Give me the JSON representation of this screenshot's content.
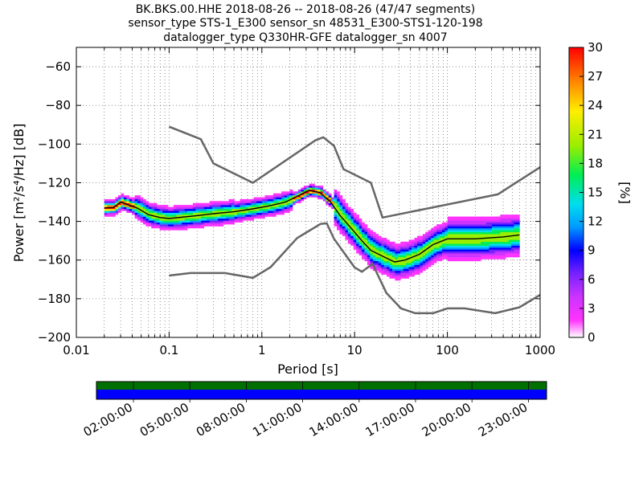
{
  "header": {
    "title_line1": "BK.BKS.00.HHE   2018-08-26 -- 2018-08-26  (47/47 segments)",
    "title_line2": "sensor_type STS-1_E300 sensor_sn 48531_E300-STS1-120-198",
    "title_line3": "datalogger_type Q330HR-GFE datalogger_sn 4007"
  },
  "colorbar": {
    "label": "[%]",
    "ticks": [
      "30",
      "27",
      "24",
      "21",
      "18",
      "15",
      "12",
      "9",
      "6",
      "3",
      "0"
    ],
    "range": [
      0,
      30
    ]
  },
  "timeline": {
    "ticks": [
      "02:00:00",
      "05:00:00",
      "08:00:00",
      "11:00:00",
      "14:00:00",
      "17:00:00",
      "20:00:00",
      "23:00:00"
    ],
    "top_color": "#007000",
    "bottom_color": "#0000ff"
  },
  "colors": {
    "noise_model": "#666666",
    "mean_curve": "#000000",
    "colormap": [
      "#ffffff",
      "#ff33ff",
      "#cc33ff",
      "#7722ff",
      "#0000ff",
      "#0099ff",
      "#00ddee",
      "#00ee55",
      "#99ee00",
      "#ffee00",
      "#ff8800",
      "#ff0000"
    ]
  },
  "chart_data": {
    "type": "heatmap",
    "title": "BK.BKS.00.HHE   2018-08-26 -- 2018-08-26  (47/47 segments)",
    "xlabel": "Period [s]",
    "ylabel": "Power [m²/s⁴/Hz] [dB]",
    "xscale": "log",
    "xlim": [
      0.01,
      1000
    ],
    "ylim": [
      -200,
      -50
    ],
    "xticks": [
      "0.01",
      "0.1",
      "1",
      "10",
      "100",
      "1000"
    ],
    "yticks": [
      "−60",
      "−80",
      "−100",
      "−120",
      "−140",
      "−160",
      "−180",
      "−200"
    ],
    "grid": true,
    "series": [
      {
        "name": "NHNM",
        "values": [
          [
            0.1,
            -91
          ],
          [
            0.22,
            -97.5
          ],
          [
            0.3,
            -110
          ],
          [
            0.8,
            -120
          ],
          [
            3.8,
            -98
          ],
          [
            4.6,
            -96.5
          ],
          [
            6,
            -101
          ],
          [
            7.6,
            -113
          ],
          [
            15,
            -120
          ],
          [
            20,
            -138
          ],
          [
            350,
            -126
          ],
          [
            1000,
            -112
          ]
        ]
      },
      {
        "name": "NLNM",
        "values": [
          [
            0.1,
            -168
          ],
          [
            0.17,
            -166.7
          ],
          [
            0.4,
            -166.7
          ],
          [
            0.8,
            -169.2
          ],
          [
            1.24,
            -163.7
          ],
          [
            2.4,
            -148.6
          ],
          [
            4.3,
            -141.3
          ],
          [
            5,
            -141
          ],
          [
            6,
            -149
          ],
          [
            10,
            -163.8
          ],
          [
            12,
            -166
          ],
          [
            15.6,
            -162
          ],
          [
            22,
            -177
          ],
          [
            31.6,
            -185
          ],
          [
            45,
            -187.5
          ],
          [
            70,
            -187.5
          ],
          [
            100,
            -185
          ],
          [
            154,
            -185
          ],
          [
            328,
            -187.5
          ],
          [
            600,
            -184.4
          ],
          [
            1000,
            -178
          ]
        ]
      },
      {
        "name": "mean",
        "values": [
          [
            0.02,
            -133
          ],
          [
            0.025,
            -132.8
          ],
          [
            0.03,
            -130
          ],
          [
            0.045,
            -133
          ],
          [
            0.06,
            -136.5
          ],
          [
            0.08,
            -138
          ],
          [
            0.1,
            -138.5
          ],
          [
            0.2,
            -137
          ],
          [
            0.3,
            -136
          ],
          [
            0.5,
            -135
          ],
          [
            0.8,
            -133.5
          ],
          [
            1.2,
            -132
          ],
          [
            1.8,
            -130
          ],
          [
            2.3,
            -127.5
          ],
          [
            3.2,
            -124
          ],
          [
            4.2,
            -125
          ],
          [
            5.5,
            -130
          ],
          [
            7,
            -137
          ],
          [
            9,
            -143
          ],
          [
            12,
            -150
          ],
          [
            15,
            -155
          ],
          [
            20,
            -158
          ],
          [
            27,
            -161
          ],
          [
            35,
            -160
          ],
          [
            50,
            -157
          ],
          [
            70,
            -152
          ],
          [
            100,
            -149
          ],
          [
            200,
            -149
          ],
          [
            400,
            -148
          ],
          [
            600,
            -147
          ]
        ]
      }
    ]
  }
}
